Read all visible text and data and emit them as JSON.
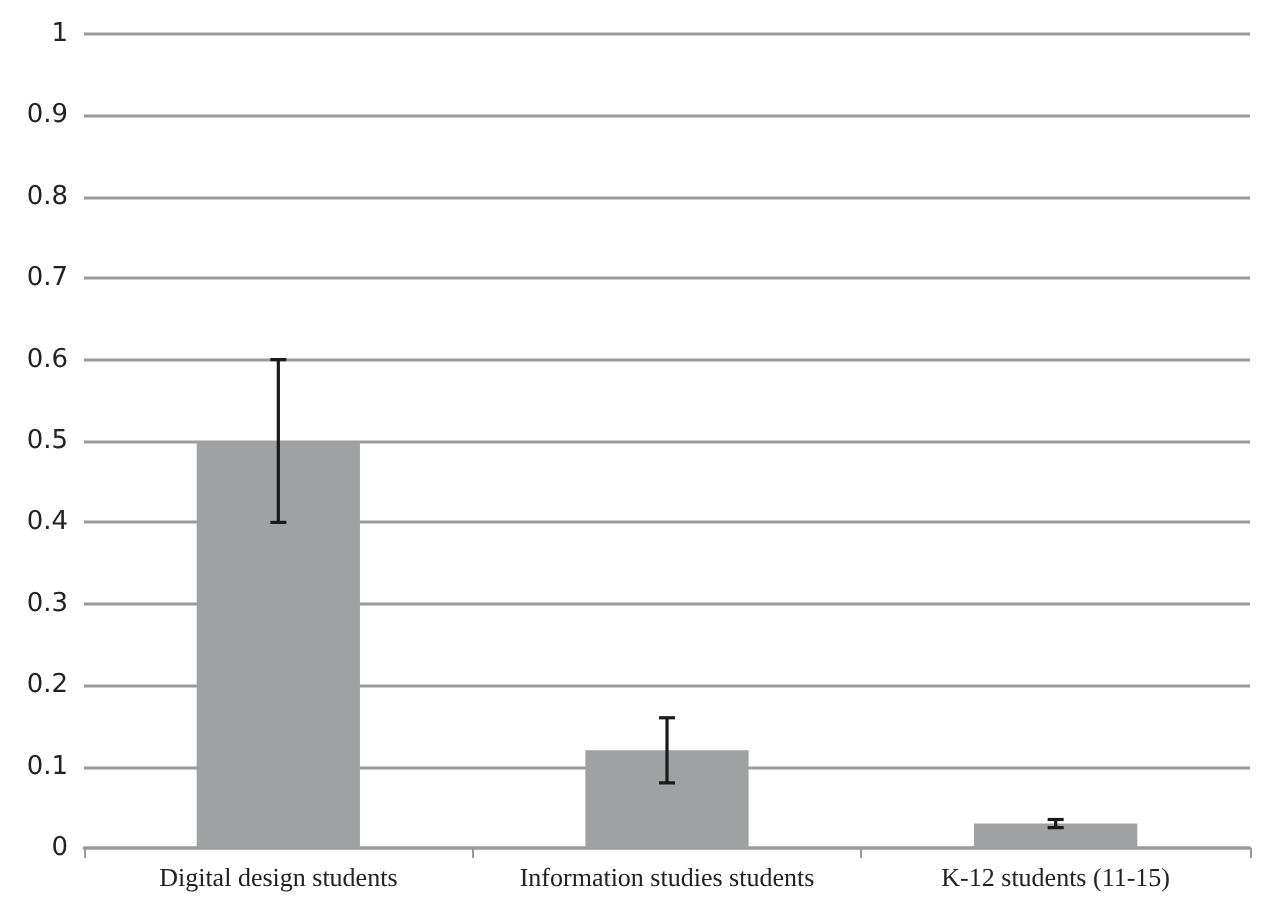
{
  "chart_data": {
    "type": "bar",
    "categories": [
      "Digital design students",
      "Information studies students",
      "K-12 students (11-15)"
    ],
    "values": [
      0.5,
      0.12,
      0.03
    ],
    "errors": [
      0.1,
      0.04,
      0.005
    ],
    "color": "#a0a1a3",
    "ylim": [
      0,
      1
    ],
    "yticks": [
      0,
      0.1,
      0.2,
      0.3,
      0.4,
      0.5,
      0.6,
      0.7,
      0.8,
      0.9,
      1
    ],
    "grid": "y"
  }
}
